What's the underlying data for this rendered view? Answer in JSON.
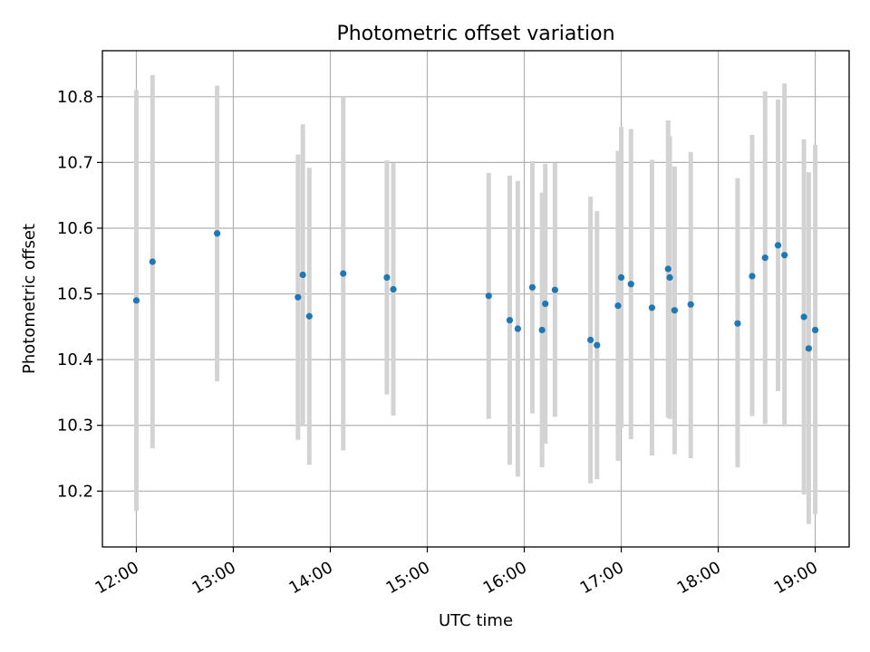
{
  "chart_data": {
    "type": "scatter",
    "title": "Photometric offset variation",
    "xlabel": "UTC time",
    "ylabel": "Photometric offset",
    "x_tick_labels": [
      "12:00",
      "13:00",
      "14:00",
      "15:00",
      "16:00",
      "17:00",
      "18:00",
      "19:00"
    ],
    "y_tick_labels": [
      "10.2",
      "10.3",
      "10.4",
      "10.5",
      "10.6",
      "10.7",
      "10.8"
    ],
    "y_ticks": [
      10.2,
      10.3,
      10.4,
      10.5,
      10.6,
      10.7,
      10.8
    ],
    "xlim": [
      "11:39",
      "19:21"
    ],
    "ylim": [
      10.115,
      10.87
    ],
    "grid": true,
    "colors": {
      "marker": "#1f77b4",
      "errorbar": "#d3d3d3",
      "grid": "#b0b0b0"
    },
    "points": [
      {
        "t": "12:00",
        "y": 10.49,
        "lo": 10.17,
        "hi": 10.81
      },
      {
        "t": "12:10",
        "y": 10.549,
        "lo": 10.265,
        "hi": 10.833
      },
      {
        "t": "12:50",
        "y": 10.592,
        "lo": 10.367,
        "hi": 10.817
      },
      {
        "t": "13:40",
        "y": 10.495,
        "lo": 10.278,
        "hi": 10.712
      },
      {
        "t": "13:43",
        "y": 10.529,
        "lo": 10.3,
        "hi": 10.758
      },
      {
        "t": "13:47",
        "y": 10.466,
        "lo": 10.24,
        "hi": 10.692
      },
      {
        "t": "14:08",
        "y": 10.531,
        "lo": 10.262,
        "hi": 10.8
      },
      {
        "t": "14:35",
        "y": 10.525,
        "lo": 10.347,
        "hi": 10.703
      },
      {
        "t": "14:39",
        "y": 10.507,
        "lo": 10.315,
        "hi": 10.699
      },
      {
        "t": "15:38",
        "y": 10.497,
        "lo": 10.31,
        "hi": 10.684
      },
      {
        "t": "15:51",
        "y": 10.46,
        "lo": 10.24,
        "hi": 10.68
      },
      {
        "t": "15:56",
        "y": 10.447,
        "lo": 10.222,
        "hi": 10.672
      },
      {
        "t": "16:05",
        "y": 10.51,
        "lo": 10.318,
        "hi": 10.702
      },
      {
        "t": "16:11",
        "y": 10.445,
        "lo": 10.236,
        "hi": 10.654
      },
      {
        "t": "16:13",
        "y": 10.485,
        "lo": 10.272,
        "hi": 10.698
      },
      {
        "t": "16:19",
        "y": 10.506,
        "lo": 10.313,
        "hi": 10.699
      },
      {
        "t": "16:41",
        "y": 10.43,
        "lo": 10.212,
        "hi": 10.648
      },
      {
        "t": "16:45",
        "y": 10.422,
        "lo": 10.218,
        "hi": 10.626
      },
      {
        "t": "16:58",
        "y": 10.482,
        "lo": 10.246,
        "hi": 10.718
      },
      {
        "t": "17:00",
        "y": 10.525,
        "lo": 10.296,
        "hi": 10.754
      },
      {
        "t": "17:06",
        "y": 10.515,
        "lo": 10.279,
        "hi": 10.751
      },
      {
        "t": "17:19",
        "y": 10.479,
        "lo": 10.254,
        "hi": 10.704
      },
      {
        "t": "17:29",
        "y": 10.538,
        "lo": 10.312,
        "hi": 10.764
      },
      {
        "t": "17:30",
        "y": 10.525,
        "lo": 10.31,
        "hi": 10.74
      },
      {
        "t": "17:33",
        "y": 10.475,
        "lo": 10.256,
        "hi": 10.694
      },
      {
        "t": "17:43",
        "y": 10.484,
        "lo": 10.25,
        "hi": 10.716
      },
      {
        "t": "18:12",
        "y": 10.455,
        "lo": 10.236,
        "hi": 10.676
      },
      {
        "t": "18:21",
        "y": 10.527,
        "lo": 10.314,
        "hi": 10.742
      },
      {
        "t": "18:29",
        "y": 10.555,
        "lo": 10.302,
        "hi": 10.808
      },
      {
        "t": "18:37",
        "y": 10.574,
        "lo": 10.352,
        "hi": 10.796
      },
      {
        "t": "18:41",
        "y": 10.559,
        "lo": 10.298,
        "hi": 10.82
      },
      {
        "t": "18:53",
        "y": 10.465,
        "lo": 10.195,
        "hi": 10.735
      },
      {
        "t": "18:56",
        "y": 10.417,
        "lo": 10.15,
        "hi": 10.685
      },
      {
        "t": "19:00",
        "y": 10.445,
        "lo": 10.165,
        "hi": 10.727
      }
    ]
  }
}
